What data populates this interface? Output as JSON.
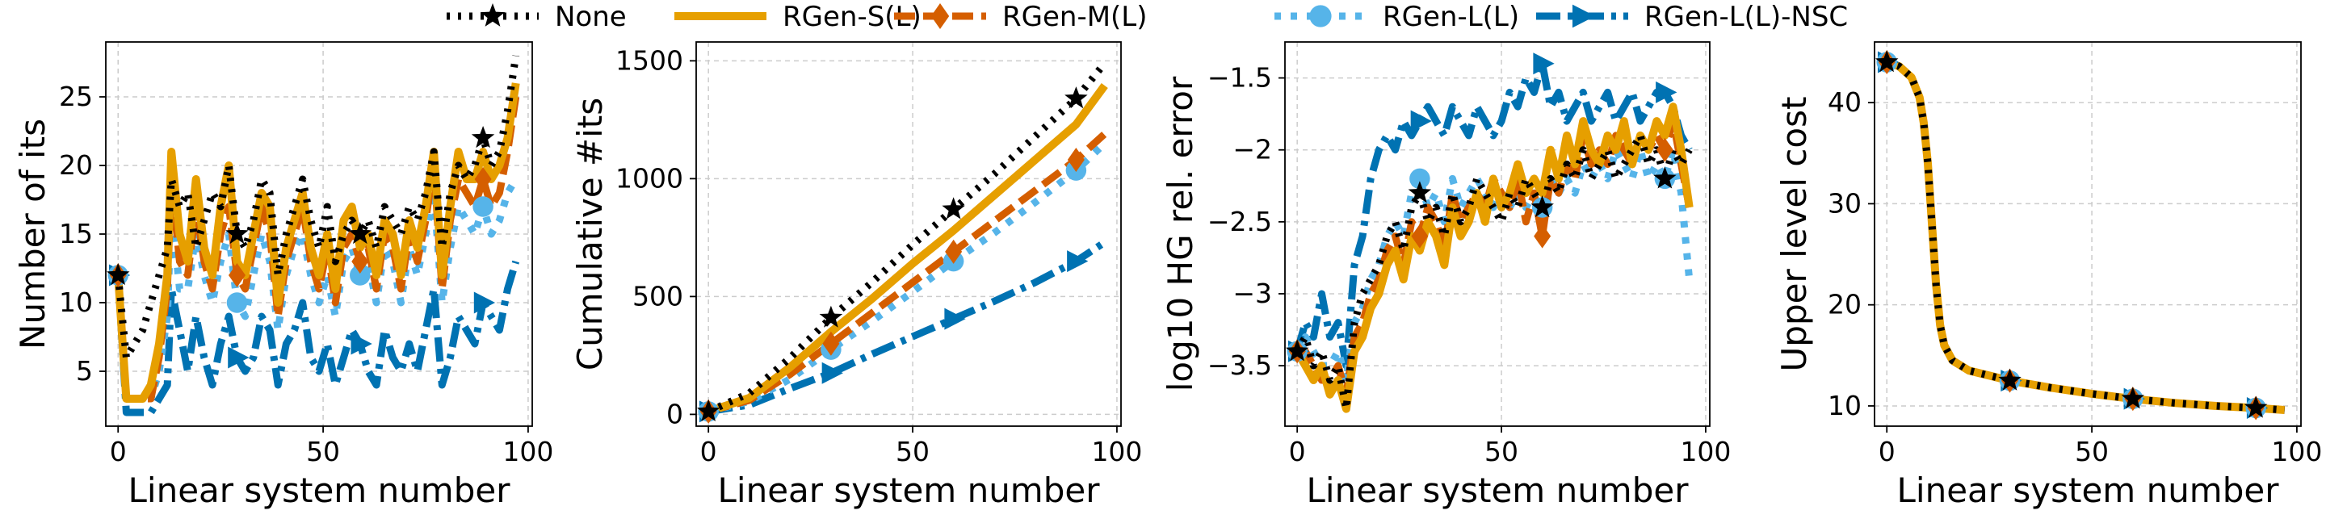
{
  "colors": {
    "none": "#000000",
    "rgen_s": "#E69F00",
    "rgen_m": "#D55E00",
    "rgen_l": "#56B4E9",
    "rgen_l_nsc": "#0072B2",
    "grid": "#cccccc"
  },
  "legend": {
    "placement": "top-center",
    "items": [
      "None",
      "RGen-S(L)",
      "RGen-M(L)",
      "RGen-L(L)",
      "RGen-L(L)-NSC"
    ]
  },
  "chart_data": [
    {
      "type": "line",
      "xlabel": "Linear system number",
      "ylabel": "Number of its",
      "xlim": [
        -3,
        101
      ],
      "ylim": [
        1,
        29
      ],
      "xticks": [
        0,
        50,
        100
      ],
      "yticks": [
        5,
        10,
        15,
        20,
        25
      ],
      "grid": true,
      "x": [
        0,
        2,
        4,
        6,
        8,
        10,
        12,
        13,
        15,
        17,
        19,
        21,
        23,
        25,
        27,
        29,
        31,
        33,
        35,
        37,
        39,
        41,
        43,
        45,
        47,
        49,
        51,
        53,
        55,
        57,
        59,
        61,
        63,
        65,
        67,
        69,
        71,
        73,
        75,
        77,
        79,
        81,
        83,
        85,
        87,
        89,
        91,
        93,
        95,
        97
      ],
      "series": [
        {
          "name": "None",
          "values": [
            12,
            6,
            7,
            8,
            10,
            12,
            14,
            19,
            17,
            18,
            14,
            16,
            18,
            17,
            20,
            15,
            14,
            16,
            19,
            18,
            12,
            15,
            17,
            19,
            16,
            14,
            17,
            13,
            15,
            16,
            15,
            16,
            14,
            17,
            16,
            15,
            17,
            16,
            18,
            21,
            14,
            18,
            20,
            19,
            20,
            22,
            20,
            21,
            24,
            28
          ]
        },
        {
          "name": "RGen-S(L)",
          "values": [
            12,
            3,
            3,
            3,
            4,
            7,
            12,
            21,
            15,
            13,
            19,
            14,
            12,
            17,
            20,
            13,
            12,
            15,
            18,
            17,
            10,
            14,
            16,
            18,
            14,
            12,
            15,
            11,
            16,
            17,
            14,
            15,
            12,
            16,
            15,
            12,
            16,
            14,
            17,
            21,
            12,
            17,
            21,
            19,
            19,
            21,
            19,
            20,
            22,
            26
          ]
        },
        {
          "name": "RGen-M(L)",
          "values": [
            12,
            3,
            3,
            3,
            3,
            6,
            11,
            19,
            13,
            12,
            17,
            13,
            11,
            15,
            17,
            12,
            11,
            14,
            17,
            15,
            9,
            13,
            15,
            17,
            13,
            11,
            14,
            10,
            14,
            15,
            13,
            14,
            11,
            15,
            14,
            11,
            15,
            13,
            16,
            20,
            11,
            16,
            19,
            18,
            17,
            19,
            17,
            18,
            21,
            25
          ]
        },
        {
          "name": "RGen-L(L)",
          "values": [
            12,
            3,
            3,
            3,
            3,
            5,
            9,
            17,
            11,
            11,
            15,
            12,
            10,
            13,
            15,
            10,
            9,
            12,
            15,
            13,
            8,
            12,
            14,
            15,
            12,
            10,
            12,
            9,
            13,
            14,
            12,
            13,
            10,
            14,
            13,
            10,
            14,
            12,
            15,
            18,
            10,
            14,
            17,
            16,
            15,
            17,
            15,
            16,
            18,
            19
          ]
        },
        {
          "name": "RGen-L(L)-NSC",
          "values": [
            12,
            2,
            2,
            2,
            2,
            3,
            4,
            11,
            8,
            5,
            9,
            6,
            4,
            7,
            9,
            6,
            5,
            6,
            9,
            8,
            4,
            7,
            8,
            10,
            6,
            5,
            7,
            4,
            6,
            8,
            7,
            5,
            4,
            8,
            6,
            5,
            7,
            5,
            8,
            11,
            4,
            6,
            9,
            8,
            7,
            10,
            9,
            8,
            11,
            13
          ]
        }
      ]
    },
    {
      "type": "line",
      "xlabel": "Linear system number",
      "ylabel": "Cumulative #its",
      "xlim": [
        -3,
        101
      ],
      "ylim": [
        -50,
        1580
      ],
      "xticks": [
        0,
        50,
        100
      ],
      "yticks": [
        0,
        500,
        1000,
        1500
      ],
      "grid": true,
      "x": [
        0,
        10,
        20,
        30,
        40,
        50,
        60,
        70,
        80,
        90,
        97
      ],
      "series": [
        {
          "name": "None",
          "values": [
            12,
            90,
            240,
            410,
            560,
            720,
            870,
            1020,
            1180,
            1340,
            1490
          ]
        },
        {
          "name": "RGen-S(L)",
          "values": [
            12,
            70,
            200,
            350,
            490,
            640,
            780,
            930,
            1080,
            1230,
            1395
          ]
        },
        {
          "name": "RGen-M(L)",
          "values": [
            12,
            60,
            170,
            300,
            430,
            560,
            690,
            820,
            950,
            1080,
            1190
          ]
        },
        {
          "name": "RGen-L(L)",
          "values": [
            12,
            55,
            150,
            275,
            395,
            520,
            650,
            770,
            900,
            1035,
            1150
          ]
        },
        {
          "name": "RGen-L(L)-NSC",
          "values": [
            12,
            40,
            110,
            175,
            255,
            330,
            405,
            480,
            560,
            650,
            730
          ]
        }
      ]
    },
    {
      "type": "line",
      "xlabel": "Linear system number",
      "ylabel": "log10 HG rel. error",
      "xlim": [
        -3,
        101
      ],
      "ylim": [
        -3.92,
        -1.25
      ],
      "xticks": [
        0,
        50,
        100
      ],
      "yticks": [
        -3.5,
        -3.0,
        -2.5,
        -2.0,
        -1.5
      ],
      "grid": true,
      "x": [
        0,
        2,
        4,
        6,
        8,
        10,
        12,
        14,
        16,
        18,
        20,
        22,
        24,
        26,
        28,
        30,
        32,
        34,
        36,
        38,
        40,
        42,
        44,
        46,
        48,
        50,
        52,
        54,
        56,
        58,
        60,
        62,
        64,
        66,
        68,
        70,
        72,
        74,
        76,
        78,
        80,
        82,
        84,
        86,
        88,
        90,
        92,
        94,
        96
      ],
      "series": [
        {
          "name": "None",
          "values": [
            -3.4,
            -3.3,
            -3.5,
            -3.4,
            -3.6,
            -3.5,
            -3.8,
            -3.2,
            -3.0,
            -2.9,
            -2.8,
            -2.6,
            -2.5,
            -2.7,
            -2.4,
            -2.3,
            -2.5,
            -2.4,
            -2.6,
            -2.3,
            -2.5,
            -2.4,
            -2.2,
            -2.3,
            -2.4,
            -2.5,
            -2.3,
            -2.4,
            -2.2,
            -2.3,
            -2.4,
            -2.2,
            -2.3,
            -2.1,
            -2.2,
            -2.0,
            -2.2,
            -2.1,
            -2.0,
            -2.2,
            -2.1,
            -2.0,
            -1.9,
            -2.1,
            -2.0,
            -2.2,
            -2.0,
            -2.1,
            -2.0
          ]
        },
        {
          "name": "RGen-S(L)",
          "values": [
            -3.4,
            -3.5,
            -3.6,
            -3.5,
            -3.7,
            -3.6,
            -3.8,
            -3.4,
            -3.3,
            -3.1,
            -3.0,
            -2.8,
            -2.7,
            -2.9,
            -2.6,
            -2.7,
            -2.5,
            -2.6,
            -2.8,
            -2.4,
            -2.6,
            -2.5,
            -2.3,
            -2.5,
            -2.2,
            -2.4,
            -2.3,
            -2.1,
            -2.3,
            -2.2,
            -2.3,
            -2.0,
            -2.2,
            -1.9,
            -2.1,
            -1.8,
            -2.0,
            -2.1,
            -1.9,
            -2.0,
            -1.8,
            -2.1,
            -1.9,
            -2.0,
            -1.8,
            -1.9,
            -1.7,
            -2.0,
            -2.4
          ]
        },
        {
          "name": "RGen-M(L)",
          "values": [
            -3.4,
            -3.4,
            -3.5,
            -3.6,
            -3.6,
            -3.5,
            -3.7,
            -3.3,
            -3.2,
            -3.0,
            -2.9,
            -2.7,
            -2.6,
            -2.8,
            -2.5,
            -2.6,
            -2.4,
            -2.5,
            -2.7,
            -2.3,
            -2.5,
            -2.4,
            -2.3,
            -2.4,
            -2.2,
            -2.3,
            -2.4,
            -2.2,
            -2.5,
            -2.3,
            -2.6,
            -2.2,
            -2.3,
            -2.1,
            -2.2,
            -1.9,
            -2.1,
            -2.0,
            -2.1,
            -1.9,
            -2.0,
            -2.1,
            -1.9,
            -2.0,
            -1.9,
            -2.0,
            -1.8,
            -2.1,
            -2.4
          ]
        },
        {
          "name": "RGen-L(L)",
          "values": [
            -3.4,
            -3.3,
            -3.4,
            -3.5,
            -3.5,
            -3.4,
            -3.6,
            -3.2,
            -3.1,
            -2.9,
            -2.8,
            -2.6,
            -2.5,
            -2.6,
            -2.3,
            -2.2,
            -2.4,
            -2.3,
            -2.5,
            -2.2,
            -2.4,
            -2.3,
            -2.2,
            -2.3,
            -2.4,
            -2.3,
            -2.4,
            -2.3,
            -2.4,
            -2.3,
            -2.4,
            -2.2,
            -2.3,
            -2.2,
            -2.3,
            -2.1,
            -2.2,
            -2.1,
            -2.2,
            -2.0,
            -2.1,
            -2.2,
            -2.0,
            -2.2,
            -2.1,
            -2.2,
            -2.0,
            -2.3,
            -2.9
          ]
        },
        {
          "name": "RGen-L(L)-NSC",
          "values": [
            -3.4,
            -3.2,
            -3.3,
            -3.0,
            -3.3,
            -3.2,
            -3.5,
            -2.8,
            -2.6,
            -2.2,
            -2.0,
            -1.9,
            -2.0,
            -1.8,
            -1.9,
            -1.8,
            -1.7,
            -1.8,
            -1.9,
            -1.7,
            -1.8,
            -1.9,
            -1.7,
            -1.8,
            -1.9,
            -1.8,
            -1.6,
            -1.7,
            -1.5,
            -1.6,
            -1.4,
            -1.7,
            -1.6,
            -1.8,
            -1.7,
            -1.6,
            -1.8,
            -1.7,
            -1.6,
            -1.8,
            -1.7,
            -1.6,
            -1.8,
            -1.7,
            -1.6,
            -1.6,
            -1.7,
            -1.9,
            -2.0
          ]
        }
      ]
    },
    {
      "type": "line",
      "xlabel": "Linear system number",
      "ylabel": "Upper level cost",
      "xlim": [
        -3,
        101
      ],
      "ylim": [
        8,
        46
      ],
      "xticks": [
        0,
        50,
        100
      ],
      "yticks": [
        10,
        20,
        30,
        40
      ],
      "grid": true,
      "x": [
        0,
        3,
        6,
        8,
        9,
        10,
        11,
        12,
        13,
        14,
        16,
        20,
        25,
        30,
        40,
        50,
        60,
        70,
        80,
        90,
        97
      ],
      "series": [
        {
          "name": "None",
          "values": [
            44,
            43.6,
            42.5,
            40.5,
            38,
            34,
            28,
            22,
            18,
            16,
            14.5,
            13.5,
            13,
            12.5,
            11.8,
            11.2,
            10.7,
            10.3,
            10.0,
            9.8,
            9.6
          ]
        },
        {
          "name": "RGen-S(L)",
          "values": [
            44,
            43.6,
            42.5,
            40.5,
            38,
            34,
            28,
            22,
            18,
            16,
            14.5,
            13.5,
            13,
            12.5,
            11.8,
            11.2,
            10.7,
            10.3,
            10.0,
            9.8,
            9.6
          ]
        },
        {
          "name": "RGen-M(L)",
          "values": [
            44,
            43.6,
            42.5,
            40.5,
            38,
            34,
            28,
            22,
            18,
            16,
            14.5,
            13.5,
            13,
            12.5,
            11.8,
            11.2,
            10.7,
            10.3,
            10.0,
            9.8,
            9.6
          ]
        },
        {
          "name": "RGen-L(L)",
          "values": [
            44,
            43.6,
            42.5,
            40.5,
            38,
            34,
            28,
            22,
            18,
            16,
            14.5,
            13.5,
            13,
            12.5,
            11.8,
            11.2,
            10.7,
            10.3,
            10.0,
            9.8,
            9.6
          ]
        },
        {
          "name": "RGen-L(L)-NSC",
          "values": [
            44,
            43.6,
            42.5,
            40.5,
            38,
            34,
            28,
            22,
            18,
            16,
            14.5,
            13.5,
            13,
            12.5,
            11.8,
            11.2,
            10.7,
            10.3,
            10.0,
            9.8,
            9.6
          ]
        }
      ]
    }
  ]
}
